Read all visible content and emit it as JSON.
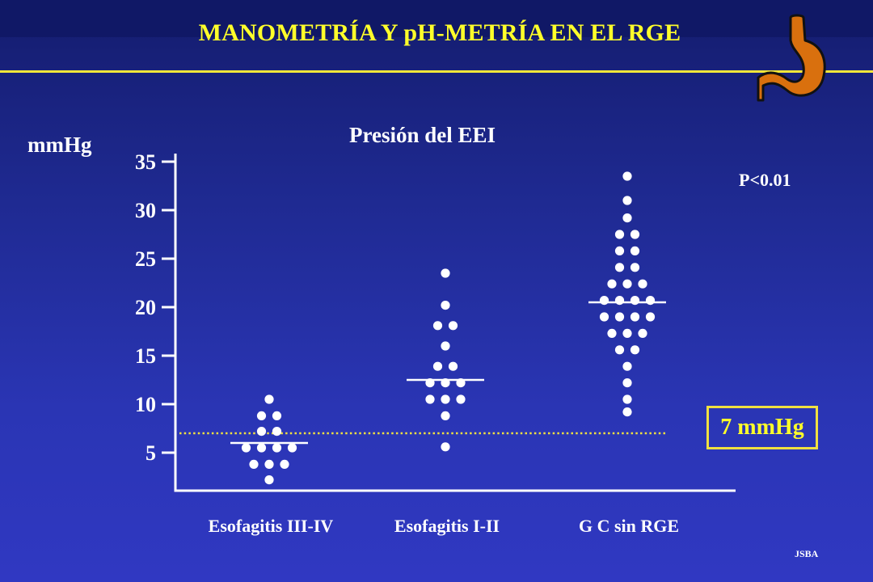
{
  "header": {
    "title": "MANOMETRÍA Y pH-METRÍA EN EL RGE",
    "logo_icon": "stomach-icon"
  },
  "colors": {
    "background": "#2a35b4",
    "title": "#ffff2a",
    "rule": "#f2e63a",
    "points": "#ffffff",
    "threshold": "#f0e040",
    "stomach": "#d9700e"
  },
  "chart_data": {
    "type": "scatter",
    "title": "Presión del EEI",
    "ylabel": "mmHg",
    "xlabel": "",
    "ylim": [
      2,
      35
    ],
    "yticks": [
      5,
      10,
      15,
      20,
      25,
      30,
      35
    ],
    "categories": [
      "Esofagitis III-IV",
      "Esofagitis I-II",
      "G C sin RGE"
    ],
    "series": [
      {
        "category": "Esofagitis III-IV",
        "mean": 6,
        "rows": [
          {
            "y": 10.5,
            "n": 1
          },
          {
            "y": 8.8,
            "n": 2
          },
          {
            "y": 7.2,
            "n": 2
          },
          {
            "y": 5.5,
            "n": 4
          },
          {
            "y": 3.8,
            "n": 3
          },
          {
            "y": 2.2,
            "n": 1
          }
        ]
      },
      {
        "category": "Esofagitis I-II",
        "mean": 12.5,
        "rows": [
          {
            "y": 23.5,
            "n": 1
          },
          {
            "y": 20.2,
            "n": 1
          },
          {
            "y": 18.1,
            "n": 2
          },
          {
            "y": 16,
            "n": 1
          },
          {
            "y": 13.9,
            "n": 2
          },
          {
            "y": 12.2,
            "n": 3
          },
          {
            "y": 10.5,
            "n": 3
          },
          {
            "y": 8.8,
            "n": 1
          },
          {
            "y": 5.6,
            "n": 1
          }
        ]
      },
      {
        "category": "G C sin RGE",
        "mean": 20.5,
        "rows": [
          {
            "y": 33.5,
            "n": 1
          },
          {
            "y": 31,
            "n": 1
          },
          {
            "y": 29.2,
            "n": 1
          },
          {
            "y": 27.5,
            "n": 2
          },
          {
            "y": 25.8,
            "n": 2
          },
          {
            "y": 24.1,
            "n": 2
          },
          {
            "y": 22.4,
            "n": 3
          },
          {
            "y": 20.7,
            "n": 4
          },
          {
            "y": 19,
            "n": 4
          },
          {
            "y": 17.3,
            "n": 3
          },
          {
            "y": 15.6,
            "n": 2
          },
          {
            "y": 13.9,
            "n": 1
          },
          {
            "y": 12.2,
            "n": 1
          },
          {
            "y": 10.5,
            "n": 1
          },
          {
            "y": 9.2,
            "n": 1
          }
        ]
      }
    ],
    "threshold": {
      "value": 7,
      "label": "7 mmHg"
    },
    "annotation": "P<0.01"
  },
  "footer": {
    "credit": "JSBA"
  }
}
